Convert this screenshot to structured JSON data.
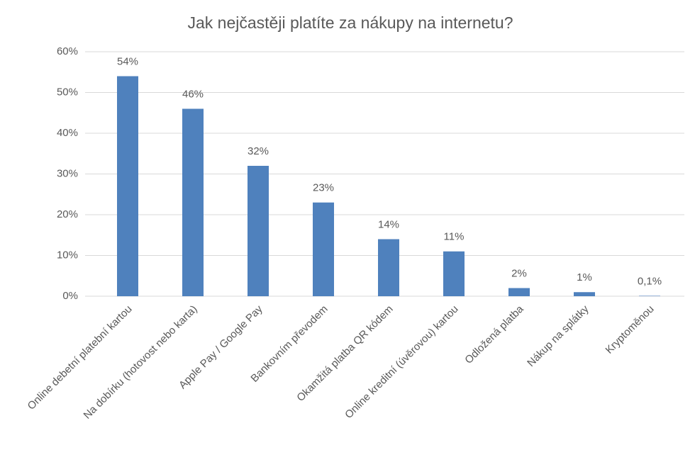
{
  "chart_data": {
    "type": "bar",
    "title": "Jak nejčastěji platíte za nákupy na internetu?",
    "categories": [
      "Online debetní platební kartou",
      "Na dobírku (hotovost nebo karta)",
      "Apple Pay / Google Pay",
      "Bankovním převodem",
      "Okamžitá platba QR kódem",
      "Online kreditní (úvěrovou) kartou",
      "Odložená platba",
      "Nákup na splátky",
      "Kryptoměnou"
    ],
    "values": [
      54,
      46,
      32,
      23,
      14,
      11,
      2,
      1,
      0.1
    ],
    "value_labels": [
      "54%",
      "46%",
      "32%",
      "23%",
      "14%",
      "11%",
      "2%",
      "1%",
      "0,1%"
    ],
    "color": "#4f81bd",
    "ylim": [
      0,
      60
    ],
    "yticks": [
      {
        "value": 0,
        "label": "0%"
      },
      {
        "value": 10,
        "label": "10%"
      },
      {
        "value": 20,
        "label": "20%"
      },
      {
        "value": 30,
        "label": "30%"
      },
      {
        "value": 40,
        "label": "40%"
      },
      {
        "value": 50,
        "label": "50%"
      },
      {
        "value": 60,
        "label": "60%"
      }
    ],
    "grid": true
  }
}
